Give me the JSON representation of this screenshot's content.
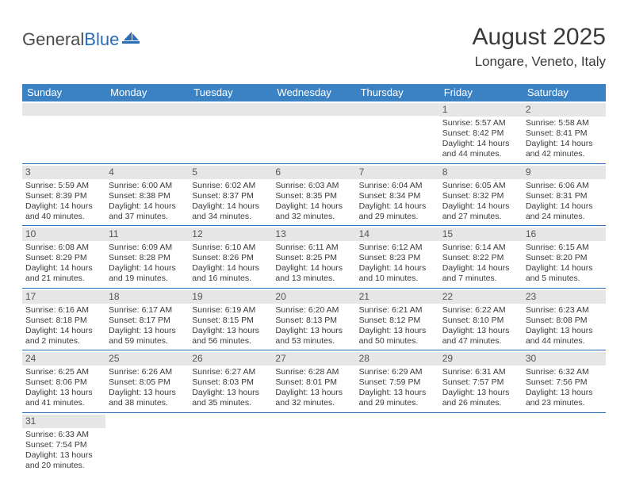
{
  "logo": {
    "general": "General",
    "blue": "Blue"
  },
  "title": "August 2025",
  "location": "Longare, Veneto, Italy",
  "colors": {
    "header_bg": "#3b82c4",
    "header_text": "#ffffff",
    "daynum_bg": "#e6e6e6",
    "border": "#2a6db5",
    "text": "#3a3a3a"
  },
  "weekdays": [
    "Sunday",
    "Monday",
    "Tuesday",
    "Wednesday",
    "Thursday",
    "Friday",
    "Saturday"
  ],
  "weeks": [
    [
      {
        "empty": true
      },
      {
        "empty": true
      },
      {
        "empty": true
      },
      {
        "empty": true
      },
      {
        "empty": true
      },
      {
        "day": "1",
        "sunrise": "Sunrise: 5:57 AM",
        "sunset": "Sunset: 8:42 PM",
        "daylight1": "Daylight: 14 hours",
        "daylight2": "and 44 minutes."
      },
      {
        "day": "2",
        "sunrise": "Sunrise: 5:58 AM",
        "sunset": "Sunset: 8:41 PM",
        "daylight1": "Daylight: 14 hours",
        "daylight2": "and 42 minutes."
      }
    ],
    [
      {
        "day": "3",
        "sunrise": "Sunrise: 5:59 AM",
        "sunset": "Sunset: 8:39 PM",
        "daylight1": "Daylight: 14 hours",
        "daylight2": "and 40 minutes."
      },
      {
        "day": "4",
        "sunrise": "Sunrise: 6:00 AM",
        "sunset": "Sunset: 8:38 PM",
        "daylight1": "Daylight: 14 hours",
        "daylight2": "and 37 minutes."
      },
      {
        "day": "5",
        "sunrise": "Sunrise: 6:02 AM",
        "sunset": "Sunset: 8:37 PM",
        "daylight1": "Daylight: 14 hours",
        "daylight2": "and 34 minutes."
      },
      {
        "day": "6",
        "sunrise": "Sunrise: 6:03 AM",
        "sunset": "Sunset: 8:35 PM",
        "daylight1": "Daylight: 14 hours",
        "daylight2": "and 32 minutes."
      },
      {
        "day": "7",
        "sunrise": "Sunrise: 6:04 AM",
        "sunset": "Sunset: 8:34 PM",
        "daylight1": "Daylight: 14 hours",
        "daylight2": "and 29 minutes."
      },
      {
        "day": "8",
        "sunrise": "Sunrise: 6:05 AM",
        "sunset": "Sunset: 8:32 PM",
        "daylight1": "Daylight: 14 hours",
        "daylight2": "and 27 minutes."
      },
      {
        "day": "9",
        "sunrise": "Sunrise: 6:06 AM",
        "sunset": "Sunset: 8:31 PM",
        "daylight1": "Daylight: 14 hours",
        "daylight2": "and 24 minutes."
      }
    ],
    [
      {
        "day": "10",
        "sunrise": "Sunrise: 6:08 AM",
        "sunset": "Sunset: 8:29 PM",
        "daylight1": "Daylight: 14 hours",
        "daylight2": "and 21 minutes."
      },
      {
        "day": "11",
        "sunrise": "Sunrise: 6:09 AM",
        "sunset": "Sunset: 8:28 PM",
        "daylight1": "Daylight: 14 hours",
        "daylight2": "and 19 minutes."
      },
      {
        "day": "12",
        "sunrise": "Sunrise: 6:10 AM",
        "sunset": "Sunset: 8:26 PM",
        "daylight1": "Daylight: 14 hours",
        "daylight2": "and 16 minutes."
      },
      {
        "day": "13",
        "sunrise": "Sunrise: 6:11 AM",
        "sunset": "Sunset: 8:25 PM",
        "daylight1": "Daylight: 14 hours",
        "daylight2": "and 13 minutes."
      },
      {
        "day": "14",
        "sunrise": "Sunrise: 6:12 AM",
        "sunset": "Sunset: 8:23 PM",
        "daylight1": "Daylight: 14 hours",
        "daylight2": "and 10 minutes."
      },
      {
        "day": "15",
        "sunrise": "Sunrise: 6:14 AM",
        "sunset": "Sunset: 8:22 PM",
        "daylight1": "Daylight: 14 hours",
        "daylight2": "and 7 minutes."
      },
      {
        "day": "16",
        "sunrise": "Sunrise: 6:15 AM",
        "sunset": "Sunset: 8:20 PM",
        "daylight1": "Daylight: 14 hours",
        "daylight2": "and 5 minutes."
      }
    ],
    [
      {
        "day": "17",
        "sunrise": "Sunrise: 6:16 AM",
        "sunset": "Sunset: 8:18 PM",
        "daylight1": "Daylight: 14 hours",
        "daylight2": "and 2 minutes."
      },
      {
        "day": "18",
        "sunrise": "Sunrise: 6:17 AM",
        "sunset": "Sunset: 8:17 PM",
        "daylight1": "Daylight: 13 hours",
        "daylight2": "and 59 minutes."
      },
      {
        "day": "19",
        "sunrise": "Sunrise: 6:19 AM",
        "sunset": "Sunset: 8:15 PM",
        "daylight1": "Daylight: 13 hours",
        "daylight2": "and 56 minutes."
      },
      {
        "day": "20",
        "sunrise": "Sunrise: 6:20 AM",
        "sunset": "Sunset: 8:13 PM",
        "daylight1": "Daylight: 13 hours",
        "daylight2": "and 53 minutes."
      },
      {
        "day": "21",
        "sunrise": "Sunrise: 6:21 AM",
        "sunset": "Sunset: 8:12 PM",
        "daylight1": "Daylight: 13 hours",
        "daylight2": "and 50 minutes."
      },
      {
        "day": "22",
        "sunrise": "Sunrise: 6:22 AM",
        "sunset": "Sunset: 8:10 PM",
        "daylight1": "Daylight: 13 hours",
        "daylight2": "and 47 minutes."
      },
      {
        "day": "23",
        "sunrise": "Sunrise: 6:23 AM",
        "sunset": "Sunset: 8:08 PM",
        "daylight1": "Daylight: 13 hours",
        "daylight2": "and 44 minutes."
      }
    ],
    [
      {
        "day": "24",
        "sunrise": "Sunrise: 6:25 AM",
        "sunset": "Sunset: 8:06 PM",
        "daylight1": "Daylight: 13 hours",
        "daylight2": "and 41 minutes."
      },
      {
        "day": "25",
        "sunrise": "Sunrise: 6:26 AM",
        "sunset": "Sunset: 8:05 PM",
        "daylight1": "Daylight: 13 hours",
        "daylight2": "and 38 minutes."
      },
      {
        "day": "26",
        "sunrise": "Sunrise: 6:27 AM",
        "sunset": "Sunset: 8:03 PM",
        "daylight1": "Daylight: 13 hours",
        "daylight2": "and 35 minutes."
      },
      {
        "day": "27",
        "sunrise": "Sunrise: 6:28 AM",
        "sunset": "Sunset: 8:01 PM",
        "daylight1": "Daylight: 13 hours",
        "daylight2": "and 32 minutes."
      },
      {
        "day": "28",
        "sunrise": "Sunrise: 6:29 AM",
        "sunset": "Sunset: 7:59 PM",
        "daylight1": "Daylight: 13 hours",
        "daylight2": "and 29 minutes."
      },
      {
        "day": "29",
        "sunrise": "Sunrise: 6:31 AM",
        "sunset": "Sunset: 7:57 PM",
        "daylight1": "Daylight: 13 hours",
        "daylight2": "and 26 minutes."
      },
      {
        "day": "30",
        "sunrise": "Sunrise: 6:32 AM",
        "sunset": "Sunset: 7:56 PM",
        "daylight1": "Daylight: 13 hours",
        "daylight2": "and 23 minutes."
      }
    ],
    [
      {
        "day": "31",
        "sunrise": "Sunrise: 6:33 AM",
        "sunset": "Sunset: 7:54 PM",
        "daylight1": "Daylight: 13 hours",
        "daylight2": "and 20 minutes."
      },
      {
        "blank": true
      },
      {
        "blank": true
      },
      {
        "blank": true
      },
      {
        "blank": true
      },
      {
        "blank": true
      },
      {
        "blank": true
      }
    ]
  ]
}
